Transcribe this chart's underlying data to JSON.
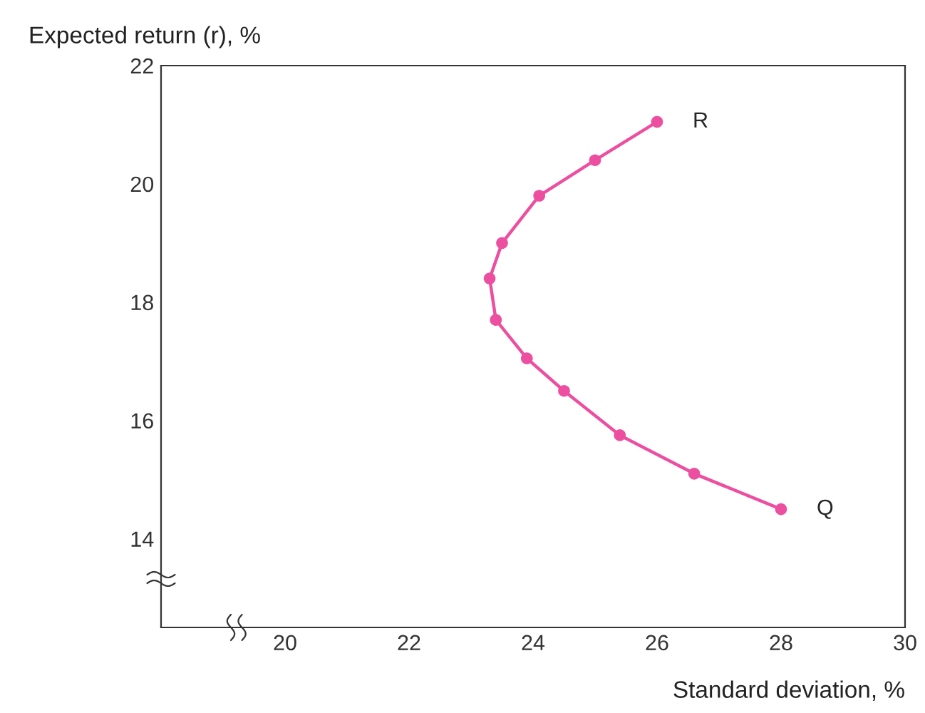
{
  "chart_data": {
    "type": "line",
    "xlabel": "Standard deviation, %",
    "ylabel": "Expected return (r), %",
    "x": [
      26,
      25.0,
      24.1,
      23.5,
      23.3,
      23.4,
      23.9,
      24.5,
      25.4,
      26.6,
      28
    ],
    "series": [
      {
        "color": "#ec4fa0",
        "values": [
          21.05,
          20.4,
          19.8,
          19.0,
          18.4,
          17.7,
          17.05,
          16.5,
          15.75,
          15.1,
          14.5
        ]
      }
    ],
    "marker": "circle",
    "line_style": "solid",
    "xlim": [
      18,
      30
    ],
    "ylim": [
      12.5,
      22
    ],
    "xticks": [
      20,
      22,
      24,
      26,
      28,
      30
    ],
    "yticks": [
      14,
      16,
      18,
      20,
      22
    ],
    "annotations": [
      {
        "text": "R",
        "x": 26,
        "y": 21.05
      },
      {
        "text": "Q",
        "x": 28,
        "y": 14.5
      }
    ],
    "grid": false,
    "legend": false
  }
}
